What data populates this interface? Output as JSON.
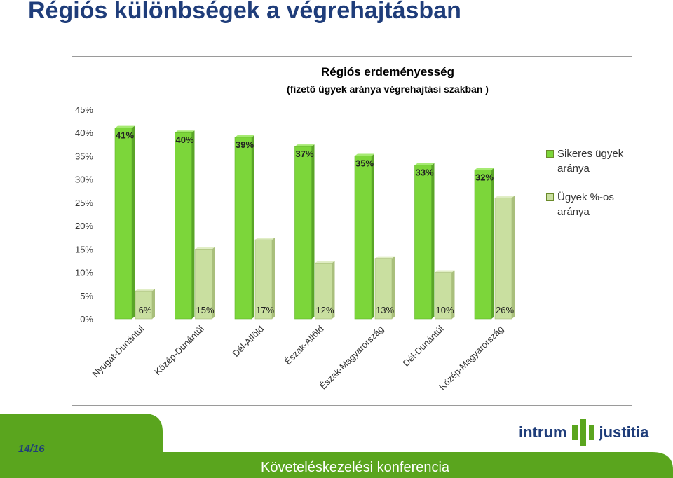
{
  "slide": {
    "title": "Régiós különbségek a végrehajtásban",
    "page_number": "14/16",
    "footer_text": "Követeléskezelési konferencia",
    "logo_left": "intrum",
    "logo_right": "justitia"
  },
  "colors": {
    "series1": "#7cd63a",
    "series2": "#c9dfa0",
    "title_blue": "#1f3d7a",
    "footer_green": "#5aa51e"
  },
  "chart_data": {
    "type": "bar",
    "title": "Régiós erdeményesség",
    "subtitle": "(fizető ügyek aránya végrehajtási szakban )",
    "categories": [
      "Nyugat-Dunántúl",
      "Közép-Dunántúl",
      "Dél-Alföld",
      "Észak-Alföld",
      "Észak-Magyarország",
      "Dél-Dunántúl",
      "Közép-Magyarország"
    ],
    "series": [
      {
        "name": "Sikeres ügyek aránya",
        "values": [
          41,
          40,
          39,
          37,
          35,
          33,
          32
        ],
        "labels": [
          "41%",
          "40%",
          "39%",
          "37%",
          "35%",
          "33%",
          "32%"
        ]
      },
      {
        "name": "Ügyek %-os aránya",
        "values": [
          6,
          15,
          17,
          12,
          13,
          10,
          26
        ],
        "labels": [
          "6%",
          "15%",
          "17%",
          "12%",
          "13%",
          "10%",
          "26%"
        ]
      }
    ],
    "y_ticks": [
      "0%",
      "5%",
      "10%",
      "15%",
      "20%",
      "25%",
      "30%",
      "35%",
      "40%",
      "45%"
    ],
    "ylim": [
      0,
      45
    ],
    "grid": false,
    "legend_position": "right",
    "style": "3d-columns"
  }
}
